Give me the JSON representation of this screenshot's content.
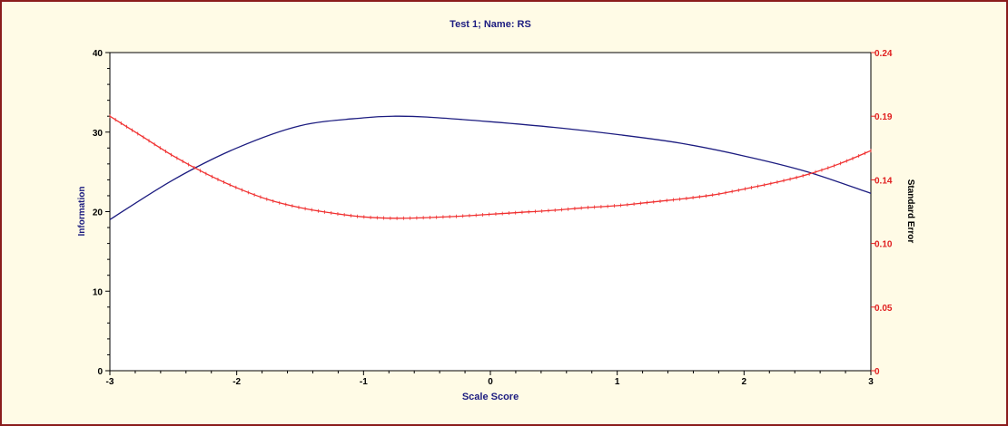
{
  "chart_data": {
    "type": "line",
    "title": "Test  1; Name: RS",
    "xlabel": "Scale Score",
    "ylabel_left": "Information",
    "ylabel_right": "Standard Error",
    "xlim": [
      -3,
      3
    ],
    "ylim_left": [
      0,
      40
    ],
    "ylim_right": [
      0,
      0.24
    ],
    "x_ticks": [
      "-3",
      "-2",
      "-1",
      "0",
      "1",
      "2",
      "3"
    ],
    "y_left_ticks": [
      "0",
      "10",
      "20",
      "30",
      "40"
    ],
    "y_right_ticks": [
      "0",
      "0.05",
      "0.10",
      "0.14",
      "0.19",
      "0.24"
    ],
    "grid": false,
    "series": [
      {
        "axis": "left",
        "color": "#1c1c80",
        "x": [
          -3,
          -2.5,
          -2,
          -1.5,
          -1,
          -0.75,
          -0.5,
          0,
          0.5,
          1,
          1.5,
          2,
          2.5,
          3
        ],
        "values": [
          19.0,
          24.0,
          28.0,
          30.8,
          31.8,
          32.0,
          31.9,
          31.3,
          30.6,
          29.7,
          28.6,
          27.0,
          25.0,
          22.3
        ]
      },
      {
        "axis": "right",
        "color": "#f03030",
        "x": [
          -3,
          -2.75,
          -2.5,
          -2.25,
          -2,
          -1.75,
          -1.5,
          -1.25,
          -1,
          -0.75,
          -0.5,
          -0.25,
          0,
          0.25,
          0.5,
          0.75,
          1,
          1.25,
          1.5,
          1.75,
          2,
          2.25,
          2.5,
          2.75,
          3
        ],
        "values": [
          0.192,
          0.177,
          0.162,
          0.149,
          0.138,
          0.129,
          0.123,
          0.119,
          0.116,
          0.115,
          0.1155,
          0.1165,
          0.118,
          0.1195,
          0.121,
          0.123,
          0.1245,
          0.127,
          0.1295,
          0.1325,
          0.137,
          0.142,
          0.148,
          0.156,
          0.166
        ]
      }
    ]
  }
}
